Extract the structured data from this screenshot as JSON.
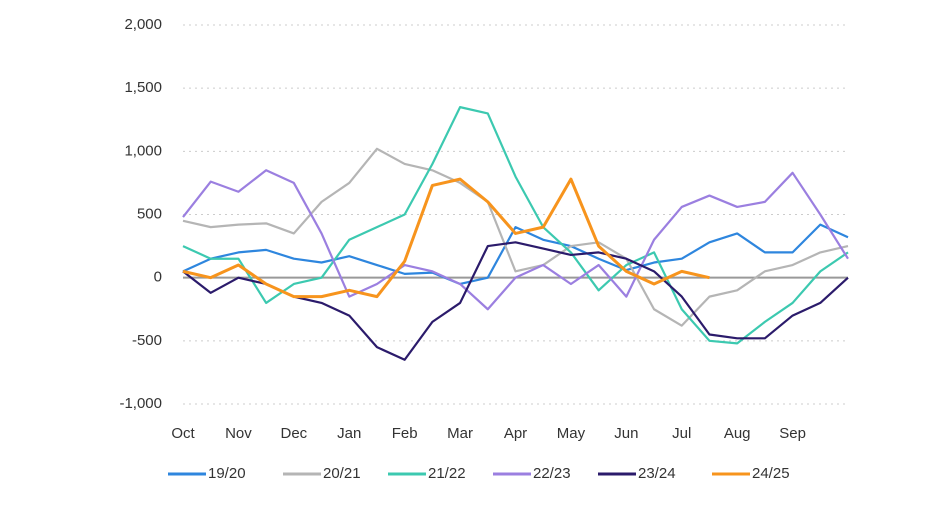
{
  "chart_data": {
    "type": "line",
    "x": [
      0,
      0.5,
      1,
      1.5,
      2,
      2.5,
      3,
      3.5,
      4,
      4.5,
      5,
      5.5,
      6,
      6.5,
      7,
      7.5,
      8,
      8.5,
      9,
      9.5,
      10,
      10.5,
      11,
      11.5,
      12
    ],
    "xlim": [
      0,
      12
    ],
    "xticks": [
      {
        "value": 0,
        "label": "Oct"
      },
      {
        "value": 1,
        "label": "Nov"
      },
      {
        "value": 2,
        "label": "Dec"
      },
      {
        "value": 3,
        "label": "Jan"
      },
      {
        "value": 4,
        "label": "Feb"
      },
      {
        "value": 5,
        "label": "Mar"
      },
      {
        "value": 6,
        "label": "Apr"
      },
      {
        "value": 7,
        "label": "May"
      },
      {
        "value": 8,
        "label": "Jun"
      },
      {
        "value": 9,
        "label": "Jul"
      },
      {
        "value": 10,
        "label": "Aug"
      },
      {
        "value": 11,
        "label": "Sep"
      }
    ],
    "ylim": [
      -1000,
      2000
    ],
    "yticks": [
      {
        "value": -1000,
        "label": "-1,000"
      },
      -500,
      0,
      500,
      {
        "value": 1000,
        "label": "1,000"
      },
      {
        "value": 1500,
        "label": "1,500"
      },
      {
        "value": 2000,
        "label": "2,000"
      }
    ],
    "grid": true,
    "legend": "bottom",
    "series": [
      {
        "name": "19/20",
        "color": "#2e86de",
        "values": [
          50,
          150,
          200,
          220,
          150,
          120,
          170,
          100,
          30,
          40,
          -50,
          0,
          400,
          300,
          250,
          150,
          60,
          120,
          150,
          280,
          350,
          200,
          200,
          420,
          320
        ]
      },
      {
        "name": "20/21",
        "color": "#b5b5b5",
        "values": [
          450,
          400,
          420,
          430,
          350,
          600,
          750,
          1020,
          900,
          850,
          750,
          600,
          50,
          100,
          250,
          280,
          150,
          -250,
          -380,
          -150,
          -100,
          50,
          100,
          200,
          250
        ]
      },
      {
        "name": "21/22",
        "color": "#3cc9b0",
        "values": [
          250,
          150,
          150,
          -200,
          -50,
          0,
          300,
          400,
          500,
          900,
          1350,
          1300,
          800,
          400,
          200,
          -100,
          100,
          200,
          -250,
          -500,
          -520,
          -350,
          -200,
          50,
          200
        ]
      },
      {
        "name": "22/23",
        "color": "#9b7fe0",
        "values": [
          480,
          760,
          680,
          850,
          750,
          350,
          -150,
          -50,
          100,
          50,
          -50,
          -250,
          0,
          100,
          -50,
          100,
          -150,
          300,
          560,
          650,
          560,
          600,
          830,
          500,
          150
        ]
      },
      {
        "name": "23/24",
        "color": "#2b1b6b",
        "values": [
          50,
          -120,
          0,
          -50,
          -150,
          -200,
          -300,
          -550,
          -650,
          -350,
          -200,
          250,
          280,
          230,
          180,
          200,
          150,
          50,
          -150,
          -450,
          -480,
          -480,
          -300,
          -200,
          0
        ]
      },
      {
        "name": "24/25",
        "color": "#f7941d",
        "values": [
          50,
          0,
          100,
          -50,
          -150,
          -150,
          -100,
          -150,
          130,
          730,
          780,
          600,
          350,
          400,
          780,
          250,
          50,
          -50,
          50,
          0,
          null,
          null,
          null,
          null,
          null
        ]
      }
    ]
  }
}
